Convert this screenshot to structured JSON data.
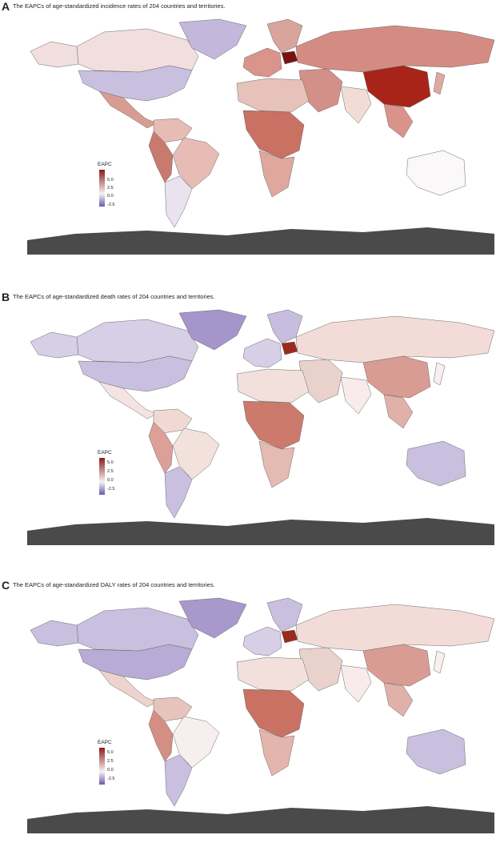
{
  "legend": {
    "title": "EAPC",
    "ticks": [
      "5.0",
      "2.5",
      "0.0",
      "-2.5"
    ],
    "colors": {
      "high": "#8e1b1b",
      "mid": "#f7f2f2",
      "low": "#6a5aa8"
    }
  },
  "panels": [
    {
      "letter": "A",
      "title": "The EAPCs of age-standardized incidence rates of 204 countries and territories.",
      "colors": {
        "northAmerica": "#c9c0df",
        "canada": "#f1dede",
        "alaska": "#f1dede",
        "greenland": "#c3b7dc",
        "centralAmerica": "#d99c93",
        "southAmericaNorth": "#e6bcb4",
        "brazil": "#e6bcb4",
        "southAmericaWest": "#c97a6e",
        "southAmericaSouth": "#e9e3f0",
        "europeWest": "#d9948b",
        "scandinavia": "#d9a49b",
        "poland": "#7a1010",
        "russia": "#d48c82",
        "china": "#a82418",
        "middleEast": "#d39088",
        "india": "#f2dcd6",
        "northAfrica": "#e7c2bb",
        "centralAfrica": "#c97163",
        "southAfrica": "#e0a79f",
        "australia": "#faf8f8",
        "southeastAsia": "#d9938a",
        "japan": "#e0a9a0",
        "antarctica": "#4a4a4a"
      }
    },
    {
      "letter": "B",
      "title": "The EAPCs of age-standardized death rates of 204 countries and territories.",
      "colors": {
        "northAmerica": "#c9c0df",
        "canada": "#d6cfe6",
        "alaska": "#d6cfe6",
        "greenland": "#a595cb",
        "centralAmerica": "#f3e4e3",
        "southAmericaNorth": "#f0d9d2",
        "brazil": "#f3e2dc",
        "southAmericaWest": "#dba097",
        "southAmericaSouth": "#c9c0df",
        "europeWest": "#d6cfe6",
        "scandinavia": "#c7bddf",
        "poland": "#9b2a1e",
        "russia": "#f3dcd8",
        "china": "#d99c93",
        "middleEast": "#e9d1cc",
        "india": "#f7eceb",
        "northAfrica": "#f2e0dc",
        "centralAfrica": "#cc7a6c",
        "southAfrica": "#e5bab2",
        "australia": "#c9c0df",
        "southeastAsia": "#e0b1aa",
        "japan": "#f7f0ef",
        "antarctica": "#4a4a4a"
      }
    },
    {
      "letter": "C",
      "title": "The EAPCs of age-standardized DALY rates of 204 countries and territories.",
      "colors": {
        "northAmerica": "#b8abd6",
        "canada": "#c9bfdf",
        "alaska": "#c9bfdf",
        "greenland": "#a898cc",
        "centralAmerica": "#eed2ce",
        "southAmericaNorth": "#e6c4bd",
        "brazil": "#f7efed",
        "southAmericaWest": "#d48e84",
        "southAmericaSouth": "#c9c0df",
        "europeWest": "#d6cfe6",
        "scandinavia": "#c9bfdf",
        "poland": "#9b2a1e",
        "russia": "#f3dcd8",
        "china": "#d99c93",
        "middleEast": "#e9d1cc",
        "india": "#f7eceb",
        "northAfrica": "#f2e0dc",
        "centralAfrica": "#c97163",
        "southAfrica": "#e3b5ad",
        "australia": "#c9c0df",
        "southeastAsia": "#e0b1aa",
        "japan": "#f7f0ef",
        "antarctica": "#4a4a4a"
      }
    }
  ]
}
